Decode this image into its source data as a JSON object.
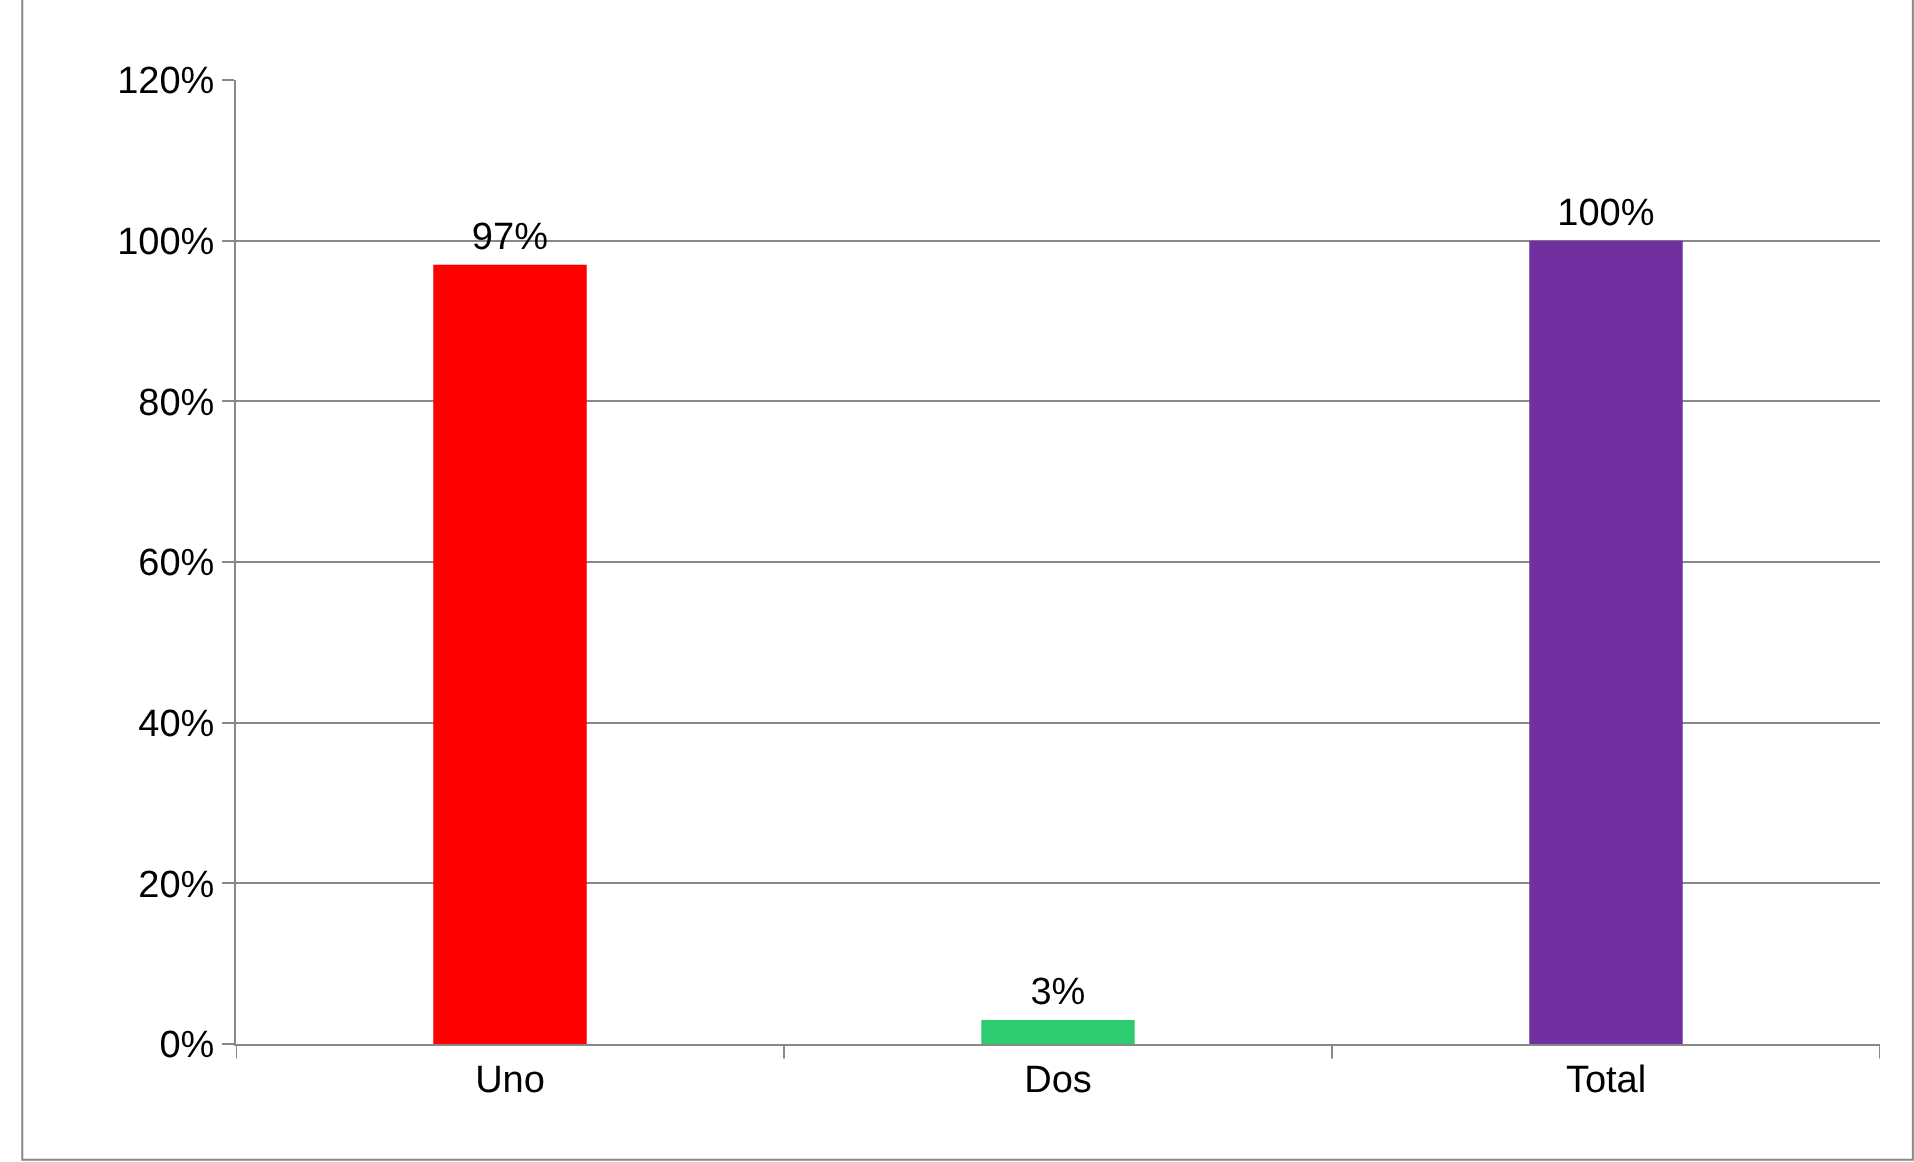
{
  "chart_data": {
    "type": "bar",
    "categories": [
      "Uno",
      "Dos",
      "Total"
    ],
    "values": [
      97,
      3,
      100
    ],
    "colors": [
      "#ff0000",
      "#2ecc71",
      "#7030a0"
    ],
    "value_labels": [
      "97%",
      "3%",
      "100%"
    ],
    "ylim": [
      0,
      120
    ],
    "yticks": [
      {
        "value": 0,
        "label": "0%"
      },
      {
        "value": 20,
        "label": "20%"
      },
      {
        "value": 40,
        "label": "40%"
      },
      {
        "value": 60,
        "label": "60%"
      },
      {
        "value": 80,
        "label": "80%"
      },
      {
        "value": 100,
        "label": "100%"
      },
      {
        "value": 120,
        "label": "120%"
      }
    ],
    "grid": "y",
    "legend": false
  }
}
